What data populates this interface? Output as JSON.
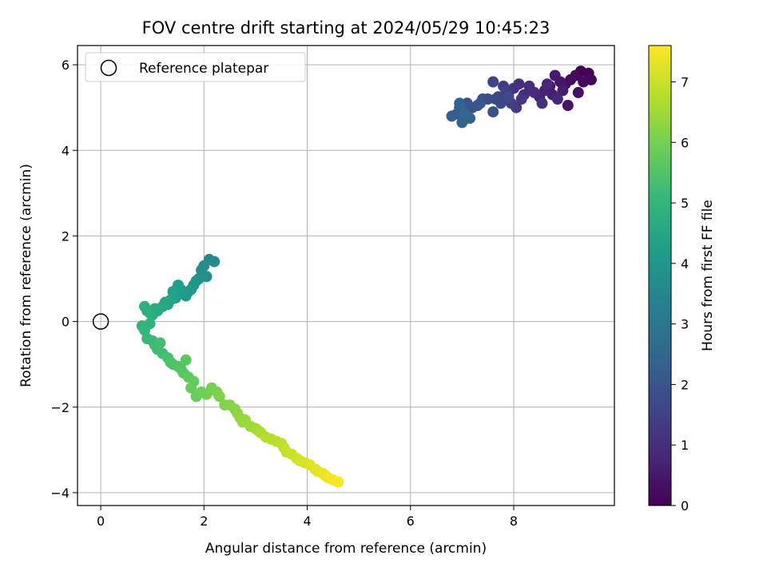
{
  "chart_data": {
    "type": "scatter",
    "title": "FOV centre drift starting at 2024/05/29 10:45:23",
    "xlabel": "Angular distance from reference (arcmin)",
    "ylabel": "Rotation from reference (arcmin)",
    "xlim": [
      -0.45,
      9.95
    ],
    "ylim": [
      -4.3,
      6.45
    ],
    "xticks": [
      0,
      2,
      4,
      6,
      8
    ],
    "yticks": [
      -4,
      -2,
      0,
      2,
      4,
      6
    ],
    "xtick_labels": [
      "0",
      "2",
      "4",
      "6",
      "8"
    ],
    "ytick_labels": [
      "−4",
      "−2",
      "0",
      "2",
      "4",
      "6"
    ],
    "grid": true,
    "legend": {
      "placement": "top-left",
      "entries": [
        "Reference platepar"
      ]
    },
    "reference_point": {
      "x": 0,
      "y": 0
    },
    "colorbar": {
      "label": "Hours from first FF file",
      "range": [
        0,
        7.6
      ],
      "ticks": [
        0,
        1,
        2,
        3,
        4,
        5,
        6,
        7
      ],
      "tick_labels": [
        "0",
        "1",
        "2",
        "3",
        "4",
        "5",
        "6",
        "7"
      ],
      "colormap": "viridis",
      "colors": [
        "#440154",
        "#482878",
        "#3e4989",
        "#31688e",
        "#26828e",
        "#1f9e89",
        "#35b779",
        "#6ece58",
        "#b5de2b",
        "#fde725"
      ]
    },
    "series": [
      {
        "hours": [
          0.0,
          0.05,
          0.1,
          0.15,
          0.2,
          0.25,
          0.3,
          0.35,
          0.4,
          0.45,
          0.5,
          0.55,
          0.6,
          0.65,
          0.7,
          0.75,
          0.8,
          0.85,
          0.9,
          0.95,
          1.0,
          1.05,
          1.1,
          1.15,
          1.2,
          1.25,
          1.3,
          1.35,
          1.4,
          1.45,
          1.5,
          1.55,
          1.6,
          1.65,
          1.7,
          1.75,
          1.8,
          1.85,
          1.9,
          1.95,
          2.0,
          2.05,
          2.1,
          2.15,
          2.2,
          2.25,
          2.3,
          2.35,
          2.4,
          2.45,
          2.5,
          3.6,
          3.65,
          3.7,
          3.75,
          3.8,
          3.85,
          3.9,
          3.95,
          4.0,
          4.05,
          4.1,
          4.15,
          4.2,
          4.25,
          4.3,
          4.35,
          4.4,
          4.45,
          4.5,
          4.55,
          4.6,
          4.65,
          4.7,
          4.75,
          4.8,
          4.85,
          4.9,
          4.95,
          5.0,
          5.05,
          5.1,
          5.15,
          5.2,
          5.25,
          5.3,
          5.35,
          5.4,
          5.45,
          5.5,
          5.55,
          5.6,
          5.65,
          5.7,
          5.75,
          5.8,
          5.85,
          5.9,
          5.95,
          6.0,
          6.05,
          6.1,
          6.15,
          6.2,
          6.25,
          6.3,
          6.35,
          6.4,
          6.45,
          6.5,
          6.55,
          6.6,
          6.65,
          6.7,
          6.75,
          6.8,
          6.85,
          6.9,
          6.95,
          7.0,
          7.05,
          7.1,
          7.15,
          7.2,
          7.25,
          7.3,
          7.35,
          7.4,
          7.45,
          7.5,
          7.55
        ],
        "x": [
          9.3,
          9.45,
          9.5,
          9.2,
          9.35,
          9.1,
          9.0,
          9.25,
          9.05,
          8.9,
          8.8,
          8.7,
          8.95,
          8.75,
          8.6,
          8.5,
          8.85,
          8.65,
          8.4,
          8.3,
          8.2,
          8.1,
          8.55,
          8.0,
          8.15,
          7.9,
          8.05,
          7.8,
          7.95,
          7.7,
          7.85,
          7.6,
          7.75,
          7.65,
          7.9,
          7.5,
          7.4,
          7.3,
          7.6,
          7.2,
          7.1,
          7.35,
          7.0,
          6.9,
          7.05,
          6.95,
          6.8,
          7.15,
          7.0,
          6.95,
          7.05,
          2.1,
          2.2,
          2.0,
          1.95,
          2.05,
          1.9,
          1.85,
          1.8,
          1.75,
          1.7,
          1.65,
          1.6,
          1.55,
          1.5,
          1.45,
          1.4,
          1.35,
          1.3,
          1.25,
          1.2,
          1.1,
          1.05,
          1.0,
          0.95,
          0.9,
          0.85,
          0.95,
          0.8,
          0.85,
          0.9,
          1.0,
          1.05,
          1.1,
          1.2,
          1.15,
          1.3,
          1.35,
          1.4,
          1.5,
          1.55,
          1.6,
          1.65,
          1.7,
          1.8,
          1.75,
          1.85,
          1.95,
          2.05,
          2.15,
          2.25,
          2.3,
          2.4,
          2.5,
          2.6,
          2.65,
          2.7,
          2.75,
          2.8,
          2.9,
          3.0,
          3.05,
          3.1,
          3.2,
          3.3,
          3.4,
          3.5,
          3.55,
          3.6,
          3.7,
          3.8,
          3.85,
          3.95,
          4.05,
          4.15,
          4.2,
          4.3,
          4.35,
          4.4,
          4.5,
          4.6
        ],
        "y": [
          5.85,
          5.8,
          5.65,
          5.75,
          5.6,
          5.65,
          5.55,
          5.35,
          5.05,
          5.6,
          5.75,
          5.5,
          5.4,
          5.3,
          5.4,
          5.25,
          5.2,
          5.55,
          5.35,
          5.5,
          5.3,
          5.55,
          5.1,
          5.45,
          5.2,
          5.35,
          5.0,
          5.5,
          5.1,
          5.25,
          5.35,
          5.6,
          5.1,
          5.2,
          5.25,
          5.2,
          5.2,
          5.05,
          4.9,
          5.0,
          5.1,
          5.1,
          4.95,
          4.85,
          4.75,
          5.0,
          4.8,
          4.75,
          4.65,
          5.1,
          4.85,
          1.45,
          1.4,
          1.3,
          1.2,
          1.05,
          1.0,
          0.95,
          0.85,
          0.75,
          0.7,
          0.6,
          0.65,
          0.75,
          0.85,
          0.55,
          0.7,
          0.5,
          0.4,
          0.45,
          0.35,
          0.25,
          0.3,
          0.15,
          0.2,
          0.25,
          0.35,
          -0.05,
          -0.1,
          -0.2,
          -0.4,
          -0.45,
          -0.55,
          -0.65,
          -0.75,
          -0.5,
          -0.85,
          -0.95,
          -1.0,
          -1.05,
          -1.1,
          -1.2,
          -0.9,
          -1.3,
          -1.4,
          -1.55,
          -1.75,
          -1.65,
          -1.7,
          -1.55,
          -1.65,
          -1.75,
          -1.95,
          -1.95,
          -2.05,
          -2.15,
          -2.25,
          -2.35,
          -2.3,
          -2.45,
          -2.5,
          -2.55,
          -2.6,
          -2.7,
          -2.75,
          -2.8,
          -2.85,
          -2.95,
          -3.05,
          -3.1,
          -3.2,
          -3.25,
          -3.3,
          -3.35,
          -3.45,
          -3.5,
          -3.55,
          -3.6,
          -3.65,
          -3.7,
          -3.75
        ]
      }
    ]
  }
}
